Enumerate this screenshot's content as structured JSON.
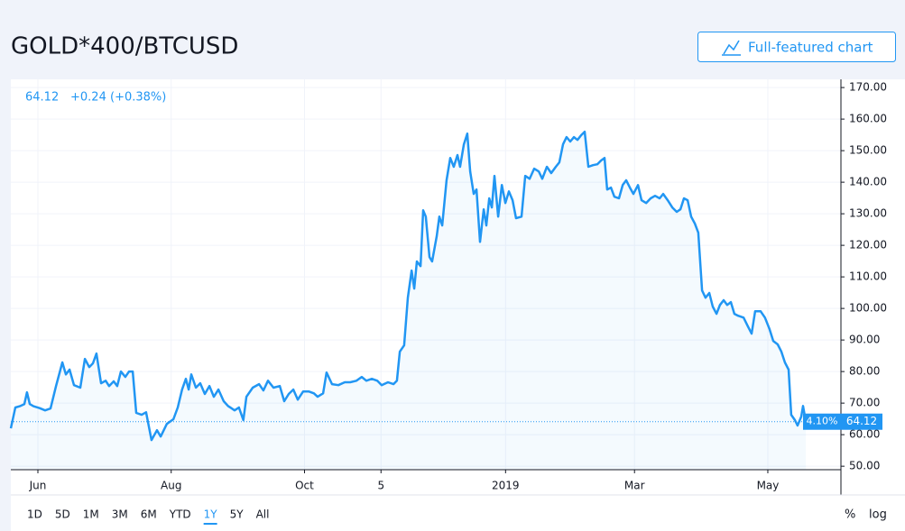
{
  "title": "GOLD*400/BTCUSD",
  "button": "Full-featured chart",
  "header": {
    "price": "64.12",
    "change": "+0.24",
    "change_pct": "(+0.38%)"
  },
  "ranges": [
    "1D",
    "5D",
    "1M",
    "3M",
    "6M",
    "YTD",
    "1Y",
    "5Y",
    "All"
  ],
  "active_range": 6,
  "scale_options": [
    "%",
    "log"
  ],
  "chart_data": {
    "type": "area",
    "color": "#2196f3",
    "log_scale": false,
    "grid": true,
    "last_price": 64.12,
    "last_change_label": "4.10%",
    "xlim": [
      0,
      380
    ],
    "xticks": [
      {
        "value": 13,
        "label": "Jun"
      },
      {
        "value": 74,
        "label": "Aug"
      },
      {
        "value": 135,
        "label": "Oct"
      },
      {
        "value": 170,
        "label": "5"
      },
      {
        "value": 227,
        "label": "2019"
      },
      {
        "value": 286,
        "label": "Mar"
      },
      {
        "value": 347,
        "label": "May"
      }
    ],
    "ylim": [
      48.9,
      172.6
    ],
    "yticks": [
      {
        "value": 50,
        "label": "50.00"
      },
      {
        "value": 60,
        "label": "60.00"
      },
      {
        "value": 70,
        "label": "70.00"
      },
      {
        "value": 80,
        "label": "80.00"
      },
      {
        "value": 90,
        "label": "90.00"
      },
      {
        "value": 100,
        "label": "100.00"
      },
      {
        "value": 110,
        "label": "110.00"
      },
      {
        "value": 120,
        "label": "120.00"
      },
      {
        "value": 130,
        "label": "130.00"
      },
      {
        "value": 140,
        "label": "140.00"
      },
      {
        "value": 150,
        "label": "150.00"
      },
      {
        "value": 160,
        "label": "160.00"
      },
      {
        "value": 170,
        "label": "170.00"
      }
    ],
    "x": [
      0.6,
      2.7,
      4.7,
      6.8,
      8,
      9.3,
      11,
      13.8,
      16.3,
      18.8,
      21.3,
      24.2,
      25.8,
      27.5,
      29.5,
      32.4,
      34.5,
      36.5,
      38.2,
      39.8,
      41.9,
      44,
      45.6,
      47.7,
      49.3,
      51,
      53,
      54.7,
      56.4,
      58,
      60.5,
      62.5,
      65,
      67.5,
      69.2,
      72,
      75,
      77,
      79,
      80.7,
      82,
      83.2,
      85.3,
      87.3,
      89.4,
      91.5,
      93.5,
      95.6,
      98,
      100,
      103,
      105,
      107,
      108.4,
      111.3,
      114.2,
      116.2,
      118.3,
      120.8,
      123.7,
      125.7,
      127.8,
      129.9,
      131.9,
      134.4,
      136.9,
      139.3,
      141,
      143.5,
      145.1,
      147.6,
      150.5,
      153.4,
      155.9,
      158.8,
      161.2,
      163.3,
      165.8,
      168.3,
      170.3,
      173.2,
      175.7,
      177.3,
      178.6,
      180.6,
      182.3,
      184,
      185.2,
      186.4,
      188.1,
      189.3,
      190.5,
      192.2,
      193.4,
      195.5,
      196.7,
      198,
      200,
      201.7,
      203.3,
      205,
      206.2,
      207.9,
      209.5,
      210.8,
      212.4,
      213.7,
      215.3,
      217,
      218.2,
      219.5,
      220.7,
      221.9,
      223.6,
      225.3,
      226.9,
      228.5,
      230.2,
      231.8,
      234.3,
      236,
      238,
      240.1,
      242.2,
      243.8,
      245.9,
      247.9,
      250,
      251.6,
      253.3,
      254.9,
      256.6,
      258.3,
      259.9,
      261.6,
      263.2,
      264.9,
      267,
      269,
      270.7,
      272.3,
      273.5,
      275.2,
      276.8,
      278.9,
      280.6,
      282.2,
      283.9,
      285.5,
      287.6,
      289.2,
      291.3,
      293.4,
      295.4,
      297.5,
      299.1,
      301.2,
      303.3,
      305.3,
      307,
      308.6,
      310.3,
      311.9,
      313.6,
      315.2,
      316.9,
      318.5,
      320.2,
      321.8,
      323.5,
      325.1,
      326.8,
      328.4,
      330.1,
      331.7,
      333.4,
      335.9,
      337.9,
      339.6,
      341.2,
      343.7,
      345.7,
      347.8,
      349.5,
      351.5,
      353.2,
      354.8,
      356.5,
      357.7,
      359.4,
      360.6,
      362.3,
      363.1,
      364.4
    ],
    "values": [
      62,
      68.6,
      69,
      69.7,
      73.4,
      69.7,
      69,
      68.4,
      67.7,
      68.3,
      75.4,
      82.9,
      79.1,
      80.6,
      75.7,
      74.9,
      84,
      81.4,
      82.6,
      85.7,
      76.3,
      77.1,
      75.4,
      76.9,
      75.4,
      80,
      78.3,
      80,
      80,
      66.9,
      66.3,
      67.1,
      58.3,
      61.4,
      59.4,
      63.4,
      64.9,
      68.6,
      74.3,
      77.7,
      74.3,
      79.1,
      74.9,
      76.3,
      72.9,
      75.4,
      72,
      74.3,
      70.6,
      69.1,
      67.7,
      68.6,
      64.6,
      72,
      74.9,
      76,
      74,
      77.1,
      74.9,
      75.4,
      70.6,
      72.9,
      74.3,
      71.1,
      73.7,
      73.7,
      73.1,
      72,
      73.1,
      79.7,
      76,
      75.7,
      76.6,
      76.6,
      77.1,
      78.3,
      77.1,
      77.7,
      77.1,
      75.7,
      76.6,
      76,
      77.1,
      86.3,
      88.3,
      103.4,
      112,
      106.3,
      114.9,
      113.4,
      131.1,
      129.1,
      116.3,
      114.9,
      122.9,
      129.1,
      126.3,
      140.6,
      147.7,
      144.9,
      148.6,
      144.9,
      152,
      155.4,
      143.4,
      136.3,
      137.7,
      121.1,
      131.4,
      126.3,
      134.9,
      132,
      142,
      129.1,
      139.1,
      133.4,
      137.1,
      134.3,
      128.6,
      129.1,
      142,
      141.1,
      144.3,
      143.4,
      141.1,
      144.9,
      142.9,
      144.9,
      146.3,
      152,
      154.3,
      152.9,
      154.3,
      153.4,
      154.9,
      156,
      144.9,
      145.4,
      145.7,
      146.9,
      147.7,
      137.7,
      138.3,
      135.4,
      134.9,
      139.1,
      140.6,
      138.3,
      136.3,
      139.1,
      134.3,
      133.4,
      134.9,
      135.7,
      134.9,
      136.3,
      134.3,
      132,
      130.6,
      131.4,
      134.9,
      134.3,
      129.1,
      126.9,
      124,
      105.7,
      103.4,
      104.9,
      100.6,
      98.3,
      101.1,
      102.6,
      101.1,
      102,
      98.3,
      97.7,
      97.1,
      94.3,
      92,
      99.1,
      99.1,
      97.1,
      93.4,
      89.7,
      88.6,
      86.3,
      82.9,
      80.6,
      66.3,
      64.6,
      62.9,
      65.7,
      69.1,
      64.12
    ]
  }
}
